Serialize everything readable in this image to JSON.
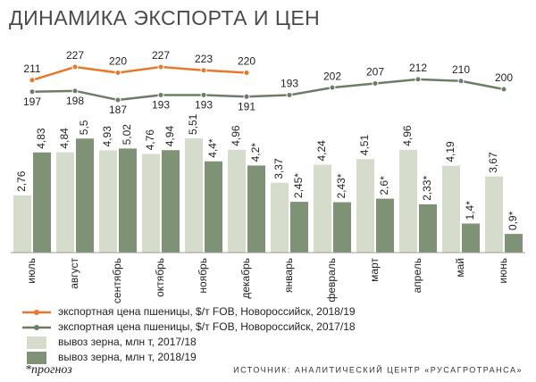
{
  "chart_data": {
    "type": "bar",
    "title": "ДИНАМИКА ЭКСПОРТА И ЦЕН",
    "categories": [
      "июль",
      "август",
      "сентябрь",
      "октябрь",
      "ноябрь",
      "декабрь",
      "январь",
      "февраль",
      "март",
      "апрель",
      "май",
      "июнь"
    ],
    "series": [
      {
        "type": "line",
        "name": "экспортная цена пшеницы, $/т FOB, Новороссийск, 2018/19",
        "color": "#e8792b",
        "values": [
          211,
          227,
          220,
          227,
          223,
          220,
          null,
          null,
          null,
          null,
          null,
          null
        ]
      },
      {
        "type": "line",
        "name": "экспортная цена пшеницы, $/т FOB, Новороссийск, 2017/18",
        "color": "#6b7d64",
        "values": [
          197,
          198,
          187,
          193,
          193,
          191,
          193,
          202,
          207,
          212,
          210,
          200
        ]
      },
      {
        "type": "bar",
        "name": "вывоз зерна, млн т, 2017/18",
        "color": "#d6dccb",
        "values": [
          2.76,
          4.84,
          4.93,
          4.76,
          5.51,
          4.96,
          3.37,
          4.24,
          4.51,
          4.96,
          4.19,
          3.67
        ],
        "value_labels": [
          "2,76",
          "4,84",
          "4,93",
          "4,76",
          "5,51",
          "4,96",
          "3,37",
          "4,24",
          "4,51",
          "4,96",
          "4,19",
          "3,67"
        ]
      },
      {
        "type": "bar",
        "name": "вывоз зерна, млн т, 2018/19",
        "color": "#7f9275",
        "values": [
          4.83,
          5.5,
          5.02,
          4.94,
          4.4,
          4.2,
          2.45,
          2.43,
          2.6,
          2.33,
          1.4,
          0.9
        ],
        "value_labels": [
          "4,83",
          "5,5",
          "5,02",
          "4,94",
          "4,4*",
          "4,2*",
          "2,45*",
          "2,43*",
          "2,6*",
          "2,33*",
          "1,4*",
          "0,9*"
        ]
      }
    ],
    "footnote": "*прогноз",
    "source": "ИСТОЧНИК: АНАЛИТИЧЕСКИЙ ЦЕНТР «РУСАГРОТРАНСА»"
  }
}
